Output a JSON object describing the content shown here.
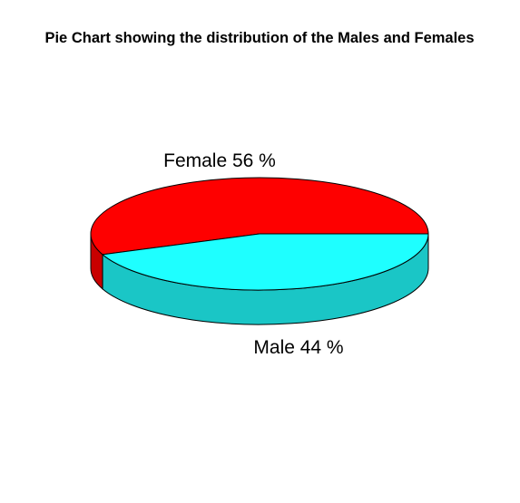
{
  "chart_data": {
    "type": "pie",
    "style": "3d",
    "title": "Pie Chart showing the distribution of the Males and Females",
    "slices": [
      {
        "label": "Female   56 %",
        "category": "Female",
        "value": 56,
        "color": "#fe0000",
        "side_color": "#c80000"
      },
      {
        "label": "Male   44 %",
        "category": "Male",
        "value": 44,
        "color": "#1effff",
        "side_color": "#1ac6c6"
      }
    ],
    "unit": "%"
  }
}
